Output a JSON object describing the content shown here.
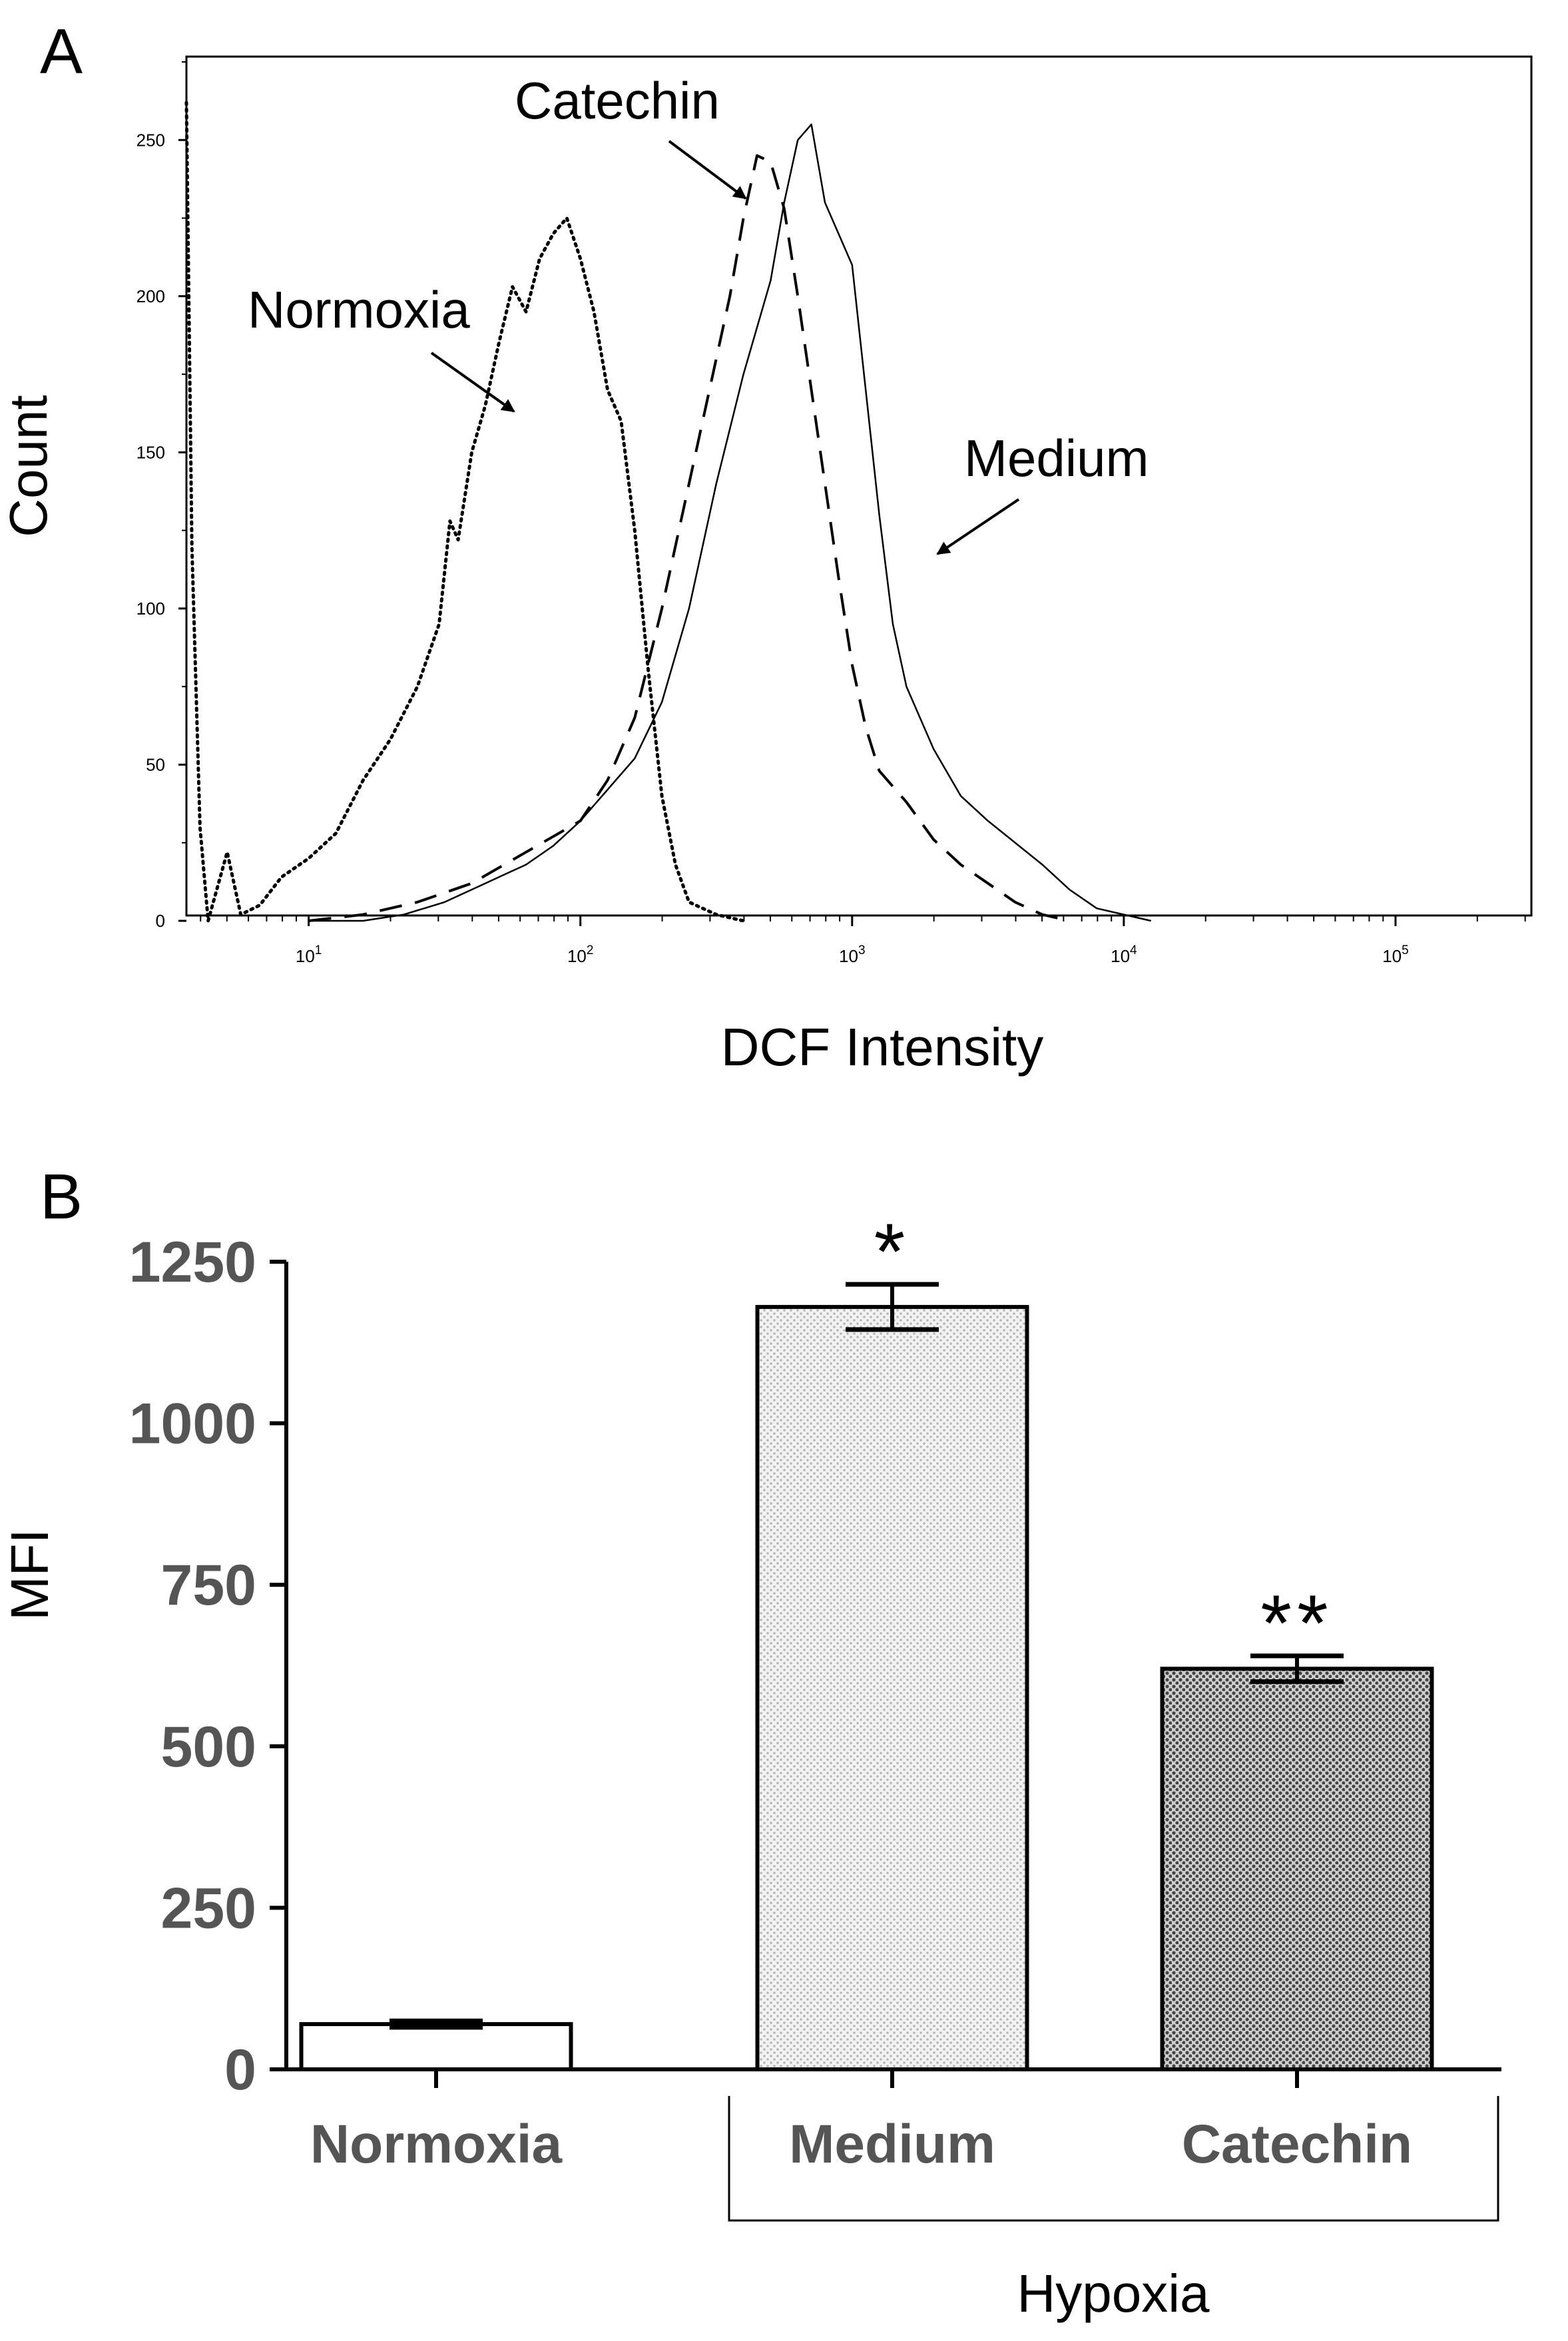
{
  "chart_data": [
    {
      "panel_label": "A",
      "type": "line",
      "title": "",
      "xlabel": "DCF Intensity",
      "ylabel": "Count",
      "xscale": "log",
      "xlim_log10": [
        0.55,
        5.5
      ],
      "ylim": [
        0,
        275
      ],
      "x_ticks": [
        {
          "log10": 1,
          "base": "10",
          "exp": "1"
        },
        {
          "log10": 2,
          "base": "10",
          "exp": "2"
        },
        {
          "log10": 3,
          "base": "10",
          "exp": "3"
        },
        {
          "log10": 4,
          "base": "10",
          "exp": "4"
        },
        {
          "log10": 5,
          "base": "10",
          "exp": "5"
        }
      ],
      "y_ticks": [
        0,
        50,
        100,
        150,
        200,
        250
      ],
      "series": [
        {
          "name": "Normoxia",
          "style": "dotted",
          "points": [
            [
              0.55,
              262
            ],
            [
              0.57,
              120
            ],
            [
              0.6,
              30
            ],
            [
              0.63,
              0
            ],
            [
              0.7,
              22
            ],
            [
              0.75,
              2
            ],
            [
              0.82,
              5
            ],
            [
              0.9,
              14
            ],
            [
              1.0,
              20
            ],
            [
              1.1,
              28
            ],
            [
              1.2,
              45
            ],
            [
              1.3,
              58
            ],
            [
              1.4,
              75
            ],
            [
              1.48,
              95
            ],
            [
              1.52,
              128
            ],
            [
              1.55,
              122
            ],
            [
              1.6,
              150
            ],
            [
              1.65,
              165
            ],
            [
              1.7,
              185
            ],
            [
              1.75,
              203
            ],
            [
              1.8,
              195
            ],
            [
              1.85,
              212
            ],
            [
              1.9,
              220
            ],
            [
              1.95,
              225
            ],
            [
              2.0,
              212
            ],
            [
              2.05,
              195
            ],
            [
              2.1,
              170
            ],
            [
              2.15,
              160
            ],
            [
              2.2,
              125
            ],
            [
              2.25,
              80
            ],
            [
              2.3,
              40
            ],
            [
              2.35,
              18
            ],
            [
              2.4,
              6
            ],
            [
              2.5,
              2
            ],
            [
              2.6,
              0
            ]
          ]
        },
        {
          "name": "Catechin",
          "style": "dashed",
          "points": [
            [
              1.0,
              0
            ],
            [
              1.2,
              2
            ],
            [
              1.4,
              6
            ],
            [
              1.6,
              12
            ],
            [
              1.8,
              22
            ],
            [
              2.0,
              32
            ],
            [
              2.1,
              45
            ],
            [
              2.2,
              65
            ],
            [
              2.3,
              100
            ],
            [
              2.4,
              140
            ],
            [
              2.5,
              180
            ],
            [
              2.55,
              200
            ],
            [
              2.6,
              225
            ],
            [
              2.65,
              245
            ],
            [
              2.7,
              243
            ],
            [
              2.75,
              228
            ],
            [
              2.8,
              200
            ],
            [
              2.85,
              170
            ],
            [
              2.9,
              140
            ],
            [
              2.95,
              110
            ],
            [
              3.0,
              82
            ],
            [
              3.05,
              62
            ],
            [
              3.1,
              48
            ],
            [
              3.2,
              38
            ],
            [
              3.3,
              26
            ],
            [
              3.4,
              18
            ],
            [
              3.5,
              12
            ],
            [
              3.6,
              6
            ],
            [
              3.7,
              2
            ],
            [
              3.8,
              0
            ]
          ]
        },
        {
          "name": "Medium",
          "style": "solid",
          "points": [
            [
              1.0,
              0
            ],
            [
              1.2,
              0
            ],
            [
              1.35,
              2
            ],
            [
              1.5,
              6
            ],
            [
              1.65,
              12
            ],
            [
              1.8,
              18
            ],
            [
              1.9,
              24
            ],
            [
              2.0,
              32
            ],
            [
              2.1,
              42
            ],
            [
              2.2,
              52
            ],
            [
              2.3,
              70
            ],
            [
              2.4,
              100
            ],
            [
              2.5,
              140
            ],
            [
              2.6,
              175
            ],
            [
              2.7,
              205
            ],
            [
              2.75,
              230
            ],
            [
              2.8,
              250
            ],
            [
              2.85,
              255
            ],
            [
              2.9,
              230
            ],
            [
              2.95,
              220
            ],
            [
              3.0,
              210
            ],
            [
              3.05,
              170
            ],
            [
              3.1,
              130
            ],
            [
              3.15,
              95
            ],
            [
              3.2,
              75
            ],
            [
              3.3,
              55
            ],
            [
              3.4,
              40
            ],
            [
              3.5,
              32
            ],
            [
              3.6,
              25
            ],
            [
              3.7,
              18
            ],
            [
              3.8,
              10
            ],
            [
              3.9,
              4
            ],
            [
              4.0,
              2
            ],
            [
              4.1,
              0
            ]
          ]
        }
      ],
      "annotations": [
        {
          "text": "Catechin",
          "points_to": "Catechin"
        },
        {
          "text": "Normoxia",
          "points_to": "Normoxia"
        },
        {
          "text": "Medium",
          "points_to": "Medium"
        }
      ]
    },
    {
      "panel_label": "B",
      "type": "bar",
      "title": "",
      "xlabel": "",
      "ylabel": "MFI",
      "ylim": [
        0,
        1250
      ],
      "y_ticks": [
        0,
        250,
        500,
        750,
        1000,
        1250
      ],
      "categories": [
        "Normoxia",
        "Medium",
        "Catechin"
      ],
      "values": [
        70,
        1180,
        620
      ],
      "errors": [
        5,
        35,
        20
      ],
      "fills": [
        "white",
        "light-stipple",
        "dark-stipple"
      ],
      "significance": [
        "",
        "*",
        "**"
      ],
      "group_label": "Hypoxia",
      "group_members": [
        "Medium",
        "Catechin"
      ]
    }
  ]
}
